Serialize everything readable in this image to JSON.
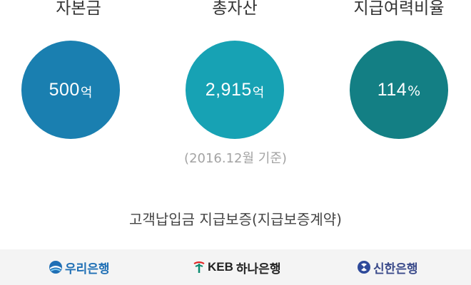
{
  "stats": [
    {
      "label": "자본금",
      "value": "500",
      "unit": "억",
      "color": "#1a7fb0"
    },
    {
      "label": "총자산",
      "value": "2,915",
      "unit": "억",
      "color": "#17a2b4"
    },
    {
      "label": "지급여력비율",
      "value": "114",
      "unit": "%",
      "color": "#137f84"
    }
  ],
  "basis_note": "(2016.12월 기준)",
  "guarantee_title": "고객납입금 지급보증(지급보증계약)",
  "banks": [
    {
      "name": "우리은행",
      "prefix": "",
      "color": "#1f6fb5",
      "icon": "woori-logo-icon"
    },
    {
      "name": "하나은행",
      "prefix": "KEB",
      "color": "#222222",
      "icon": "keb-hana-logo-icon"
    },
    {
      "name": "신한은행",
      "prefix": "",
      "color": "#3a4a8a",
      "icon": "shinhan-logo-icon"
    }
  ]
}
